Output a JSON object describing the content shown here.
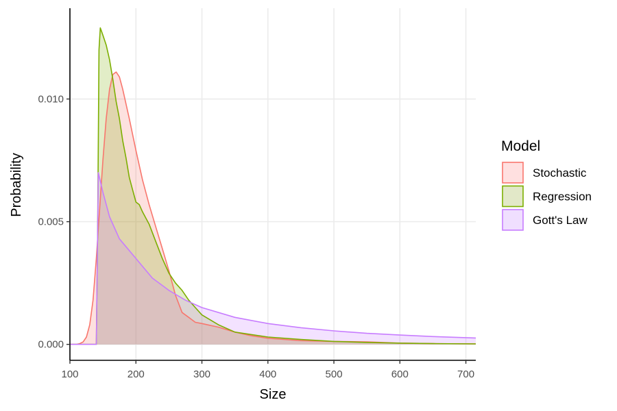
{
  "chart_data": {
    "type": "area",
    "xlabel": "Size",
    "ylabel": "Probability",
    "xlim": [
      100,
      715
    ],
    "ylim": [
      -0.00065,
      0.0137
    ],
    "x_ticks": [
      100,
      200,
      300,
      400,
      500,
      600,
      700
    ],
    "x_tick_labels": [
      "100",
      "200",
      "300",
      "400",
      "500",
      "600",
      "700"
    ],
    "y_ticks": [
      0.0,
      0.005,
      0.01
    ],
    "y_tick_labels": [
      "0.000",
      "0.005",
      "0.010"
    ],
    "grid": true,
    "legend": {
      "title": "Model",
      "position": "right"
    },
    "series": [
      {
        "name": "Stochastic",
        "color": "#F8766D",
        "fill": "#FFE0E0",
        "points": [
          [
            100,
            0
          ],
          [
            110,
            0
          ],
          [
            115,
            3e-05
          ],
          [
            120,
            0.0001
          ],
          [
            125,
            0.0003
          ],
          [
            130,
            0.0008
          ],
          [
            135,
            0.0018
          ],
          [
            140,
            0.0035
          ],
          [
            145,
            0.0055
          ],
          [
            150,
            0.0075
          ],
          [
            155,
            0.0092
          ],
          [
            160,
            0.0104
          ],
          [
            165,
            0.011
          ],
          [
            170,
            0.0111
          ],
          [
            175,
            0.0109
          ],
          [
            180,
            0.0104
          ],
          [
            190,
            0.0092
          ],
          [
            200,
            0.0079
          ],
          [
            210,
            0.0067
          ],
          [
            220,
            0.0057
          ],
          [
            230,
            0.0048
          ],
          [
            240,
            0.0039
          ],
          [
            250,
            0.003
          ],
          [
            260,
            0.002
          ],
          [
            270,
            0.0013
          ],
          [
            280,
            0.0011
          ],
          [
            290,
            0.0009
          ],
          [
            300,
            0.00085
          ],
          [
            325,
            0.0007
          ],
          [
            350,
            0.0005
          ],
          [
            375,
            0.00035
          ],
          [
            400,
            0.00025
          ],
          [
            450,
            0.00015
          ],
          [
            500,
            0.00012
          ],
          [
            550,
            0.0001
          ],
          [
            600,
            5e-05
          ],
          [
            650,
            3e-05
          ],
          [
            715,
            2e-05
          ]
        ]
      },
      {
        "name": "Regression",
        "color": "#7CAE00",
        "fill": "#E2E8C8",
        "points": [
          [
            100,
            0
          ],
          [
            140,
            0
          ],
          [
            142,
            0.0045
          ],
          [
            144,
            0.012
          ],
          [
            146,
            0.0129
          ],
          [
            150,
            0.0126
          ],
          [
            155,
            0.0122
          ],
          [
            160,
            0.0116
          ],
          [
            165,
            0.0108
          ],
          [
            170,
            0.0099
          ],
          [
            175,
            0.0092
          ],
          [
            180,
            0.0083
          ],
          [
            185,
            0.0076
          ],
          [
            190,
            0.0068
          ],
          [
            195,
            0.0063
          ],
          [
            200,
            0.0058
          ],
          [
            205,
            0.0057
          ],
          [
            210,
            0.0054
          ],
          [
            220,
            0.0049
          ],
          [
            230,
            0.0042
          ],
          [
            240,
            0.0035
          ],
          [
            250,
            0.0029
          ],
          [
            260,
            0.0025
          ],
          [
            270,
            0.0022
          ],
          [
            280,
            0.0018
          ],
          [
            290,
            0.0015
          ],
          [
            300,
            0.0012
          ],
          [
            325,
            0.0008
          ],
          [
            350,
            0.0005
          ],
          [
            375,
            0.0004
          ],
          [
            400,
            0.0003
          ],
          [
            450,
            0.0002
          ],
          [
            500,
            0.00012
          ],
          [
            550,
            8e-05
          ],
          [
            600,
            5e-05
          ],
          [
            650,
            3e-05
          ],
          [
            715,
            2e-05
          ]
        ]
      },
      {
        "name": "Gott's Law",
        "color": "#C77CFF",
        "fill": "#F0DFFF",
        "points": [
          [
            100,
            0
          ],
          [
            140,
            0
          ],
          [
            143,
            0.007
          ],
          [
            150,
            0.0062
          ],
          [
            160,
            0.0052
          ],
          [
            175,
            0.0043
          ],
          [
            200,
            0.0035
          ],
          [
            225,
            0.0027
          ],
          [
            250,
            0.0022
          ],
          [
            275,
            0.0018
          ],
          [
            300,
            0.0015
          ],
          [
            350,
            0.0011
          ],
          [
            400,
            0.00085
          ],
          [
            450,
            0.00068
          ],
          [
            500,
            0.00055
          ],
          [
            550,
            0.00045
          ],
          [
            600,
            0.00038
          ],
          [
            650,
            0.00032
          ],
          [
            715,
            0.00026
          ]
        ]
      }
    ]
  }
}
